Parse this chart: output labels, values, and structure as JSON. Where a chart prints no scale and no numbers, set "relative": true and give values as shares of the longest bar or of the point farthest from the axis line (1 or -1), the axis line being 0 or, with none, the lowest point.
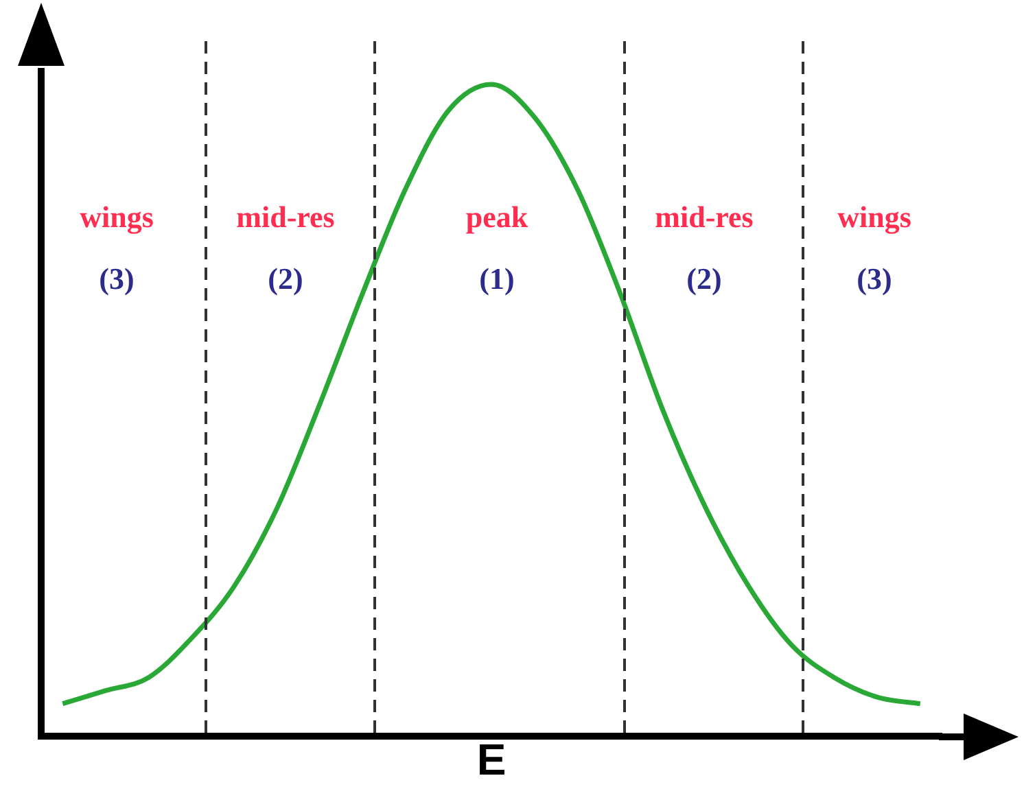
{
  "chart_data": {
    "type": "line",
    "relative": true,
    "xlabel": "E",
    "grid": false,
    "legend": false,
    "marker": "none",
    "line_style": "solid",
    "categories": [
      null,
      null,
      null,
      null,
      null,
      null,
      null,
      null,
      null,
      null,
      null,
      null,
      null,
      null,
      null,
      null,
      null,
      null,
      null,
      null,
      null
    ],
    "series": [
      {
        "color": "#2aa836",
        "values": [
          0.05,
          0.07,
          0.09,
          0.15,
          0.23,
          0.35,
          0.51,
          0.68,
          0.84,
          0.96,
          1,
          0.95,
          0.84,
          0.68,
          0.5,
          0.35,
          0.23,
          0.14,
          0.09,
          0.06,
          0.05
        ]
      }
    ],
    "annotations": [
      "wings\n(3)",
      "mid-res\n(2)",
      "peak\n(1)",
      "mid-res\n(2)",
      "wings\n(3)"
    ]
  }
}
